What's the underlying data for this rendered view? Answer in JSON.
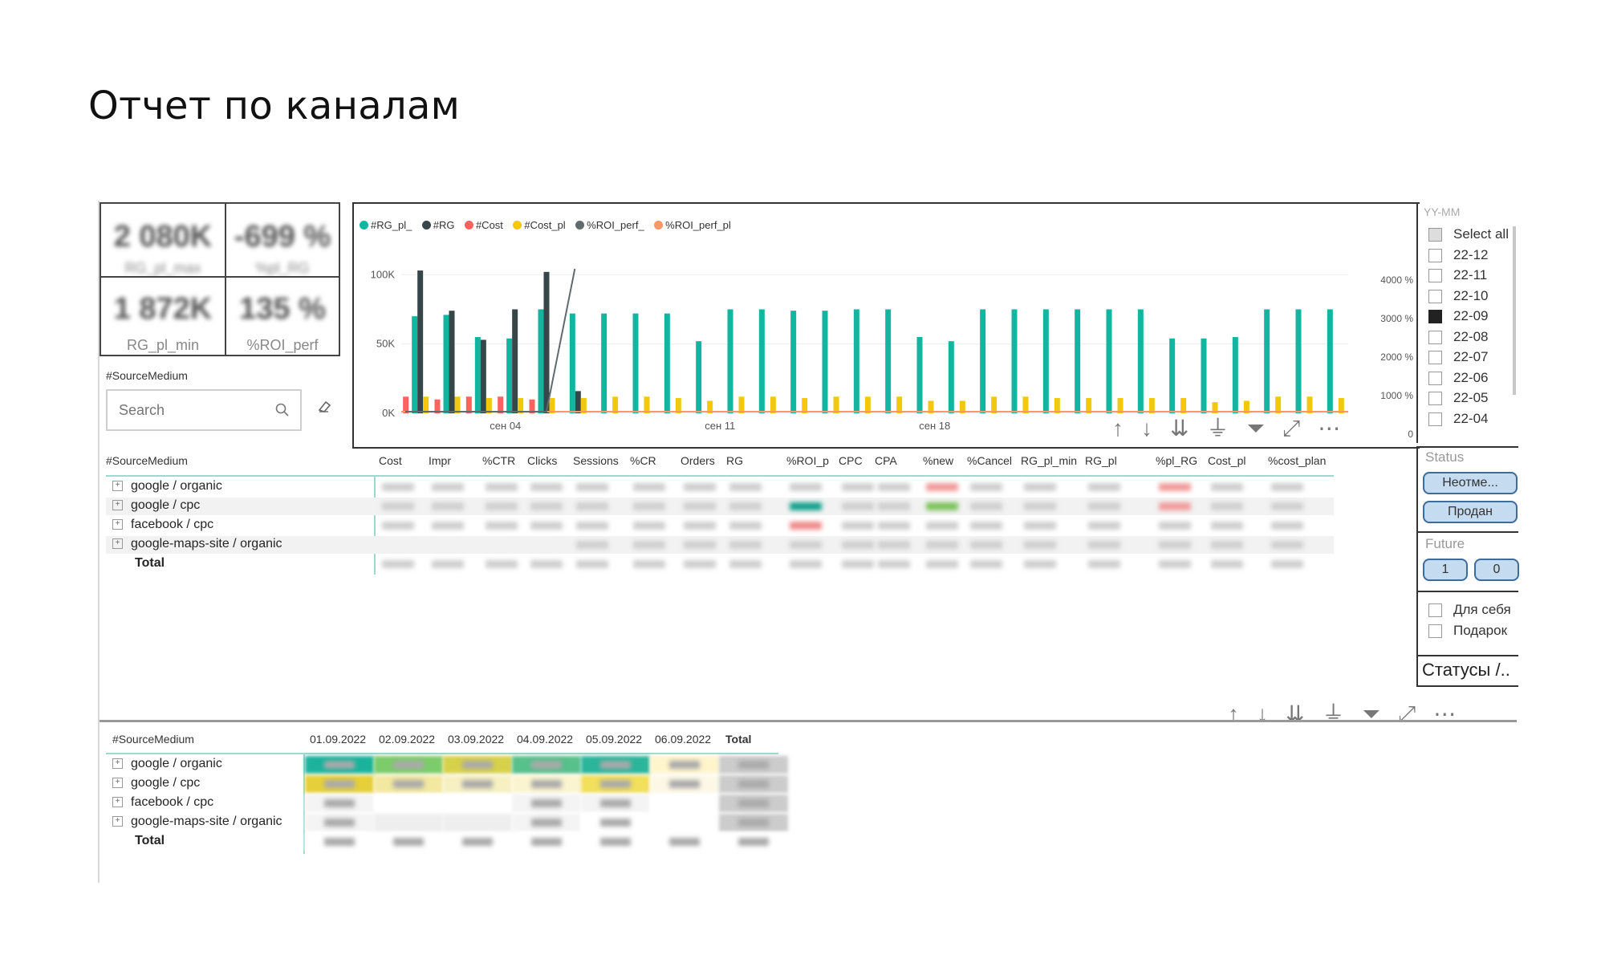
{
  "page_title": "Отчет по каналам",
  "kpis": [
    {
      "value": "2 080K",
      "label": "RG_pl_max"
    },
    {
      "value": "-699 %",
      "label": "%pl_RG"
    },
    {
      "value": "1 872K",
      "label": "RG_pl_min"
    },
    {
      "value": "135 %",
      "label": "%ROI_perf"
    }
  ],
  "slicer_source": {
    "title": "#SourceMedium",
    "placeholder": "Search"
  },
  "chart_data": {
    "type": "bar",
    "legend": [
      "#RG_pl_",
      "#RG",
      "#Cost",
      "#Cost_pl",
      "%ROI_perf_",
      "%ROI_perf_pl"
    ],
    "colors": {
      "#RG_pl_": "#12b5a0",
      "#RG": "#374649",
      "#Cost": "#fd625e",
      "#Cost_pl": "#f2c80f",
      "%ROI_perf_": "#5f6b6d",
      "%ROI_perf_pl": "#fe9666"
    },
    "y_ticks": [
      "100K",
      "50K",
      "0K"
    ],
    "y2_ticks": [
      "4000 %",
      "3000 %",
      "2000 %",
      "1000 %",
      "0"
    ],
    "x_ticks": [
      "сен 04",
      "сен 11",
      "сен 18"
    ],
    "ylim": [
      0,
      110000
    ],
    "categories": [
      "1",
      "2",
      "3",
      "4",
      "5",
      "6",
      "7",
      "8",
      "9",
      "10",
      "11",
      "12",
      "13",
      "14",
      "15",
      "16",
      "17",
      "18",
      "19",
      "20",
      "21",
      "22",
      "23",
      "24",
      "25",
      "26",
      "27",
      "28",
      "29",
      "30"
    ],
    "series": [
      {
        "name": "#RG_pl_",
        "values": [
          70000,
          71000,
          55000,
          54000,
          75000,
          72000,
          72000,
          72000,
          72000,
          52000,
          75000,
          75000,
          74000,
          74000,
          75000,
          75000,
          55000,
          52000,
          75000,
          75000,
          75000,
          75000,
          75000,
          75000,
          54000,
          54000,
          55000,
          75000,
          75000,
          75000
        ]
      },
      {
        "name": "#RG",
        "values": [
          103000,
          74000,
          53000,
          75000,
          102000,
          16000,
          0,
          0,
          0,
          0,
          0,
          0,
          0,
          0,
          0,
          0,
          0,
          0,
          0,
          0,
          0,
          0,
          0,
          0,
          0,
          0,
          0,
          0,
          0,
          0
        ]
      },
      {
        "name": "#Cost",
        "values": [
          12000,
          10000,
          12000,
          12000,
          10000,
          0,
          0,
          0,
          0,
          0,
          0,
          0,
          0,
          0,
          0,
          0,
          0,
          0,
          0,
          0,
          0,
          0,
          0,
          0,
          0,
          0,
          0,
          0,
          0,
          0
        ]
      },
      {
        "name": "#Cost_pl",
        "values": [
          12000,
          12000,
          11000,
          11000,
          11000,
          11000,
          12000,
          12000,
          11000,
          9000,
          12000,
          12000,
          11000,
          12000,
          12000,
          12000,
          9000,
          9000,
          12000,
          12000,
          11000,
          11000,
          11000,
          11000,
          11000,
          8000,
          9000,
          12000,
          12000,
          11000
        ]
      }
    ]
  },
  "yymm_slicer": {
    "title": "YY-MM",
    "items": [
      "Select all",
      "22-12",
      "22-11",
      "22-10",
      "22-09",
      "22-08",
      "22-07",
      "22-06",
      "22-05",
      "22-04"
    ],
    "selected": "22-09"
  },
  "status_slicer": {
    "title": "Status",
    "options": [
      "Неотме...",
      "Продан"
    ]
  },
  "future_slicer": {
    "title": "Future",
    "options": [
      "1",
      "0"
    ]
  },
  "purpose_slicer": {
    "items": [
      "Для себя",
      "Подарок"
    ]
  },
  "statuses_label": "Статусы /..",
  "main_table": {
    "columns": [
      "#SourceMedium",
      "Cost",
      "Impr",
      "%CTR",
      "Clicks",
      "Sessions",
      "%CR",
      "Orders",
      "RG",
      "%ROI_p",
      "CPC",
      "CPA",
      "%new",
      "%Cancel",
      "RG_pl_min",
      "RG_pl",
      "%pl_RG",
      "Cost_pl",
      "%cost_plan"
    ],
    "rows": [
      "google / organic",
      "google / cpc",
      "facebook / cpc",
      "google-maps-site / organic"
    ],
    "total_label": "Total"
  },
  "daily_table": {
    "columns": [
      "#SourceMedium",
      "01.09.2022",
      "02.09.2022",
      "03.09.2022",
      "04.09.2022",
      "05.09.2022",
      "06.09.2022",
      "Total"
    ],
    "rows": [
      "google / organic",
      "google / cpc",
      "facebook / cpc",
      "google-maps-site / organic"
    ],
    "total_label": "Total"
  }
}
